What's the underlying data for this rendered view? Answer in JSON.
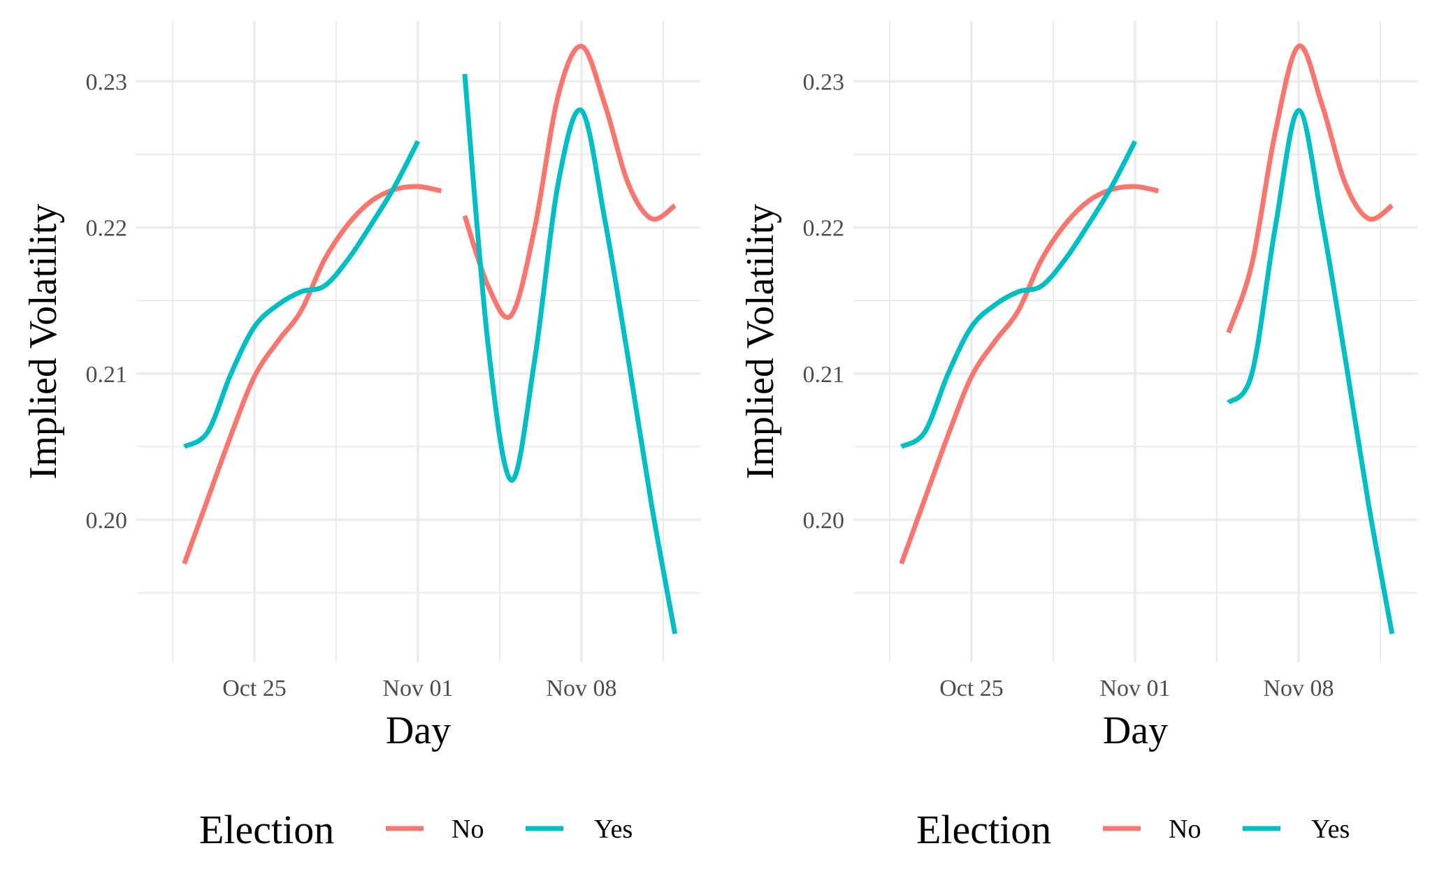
{
  "colors": {
    "No": "#F8766D",
    "Yes": "#00BFC4",
    "grid": "#EBEBEB"
  },
  "chart_data": [
    {
      "type": "line",
      "xlabel": "Day",
      "ylabel": "Implied Volatility",
      "x_ticks": [
        "Oct 25",
        "Nov 01",
        "Nov 08"
      ],
      "y_ticks": [
        "0.20",
        "0.21",
        "0.22",
        "0.23"
      ],
      "ylim": [
        0.191,
        0.235
      ],
      "xlim": [
        "2016-10-21",
        "2016-11-12"
      ],
      "legend": {
        "title": "Election",
        "position": "bottom",
        "entries": [
          "No",
          "Yes"
        ]
      },
      "grid": true,
      "series": [
        {
          "name": "No",
          "segment": 1,
          "points": [
            [
              "2016-10-22",
              0.197
            ],
            [
              "2016-10-23",
              0.2014
            ],
            [
              "2016-10-24",
              0.2058
            ],
            [
              "2016-10-25",
              0.2098
            ],
            [
              "2016-10-26",
              0.2122
            ],
            [
              "2016-10-27",
              0.2143
            ],
            [
              "2016-10-28",
              0.2178
            ],
            [
              "2016-10-29",
              0.2202
            ],
            [
              "2016-10-30",
              0.2218
            ],
            [
              "2016-10-31",
              0.2226
            ],
            [
              "2016-11-01",
              0.2228
            ],
            [
              "2016-11-02",
              0.2225
            ]
          ]
        },
        {
          "name": "Yes",
          "segment": 1,
          "points": [
            [
              "2016-10-22",
              0.205
            ],
            [
              "2016-10-23",
              0.206
            ],
            [
              "2016-10-24",
              0.21
            ],
            [
              "2016-10-25",
              0.2132
            ],
            [
              "2016-10-26",
              0.2147
            ],
            [
              "2016-10-27",
              0.2156
            ],
            [
              "2016-10-28",
              0.216
            ],
            [
              "2016-10-29",
              0.2178
            ],
            [
              "2016-10-30",
              0.2202
            ],
            [
              "2016-10-31",
              0.2228
            ],
            [
              "2016-11-01",
              0.2259
            ]
          ]
        },
        {
          "name": "No",
          "segment": 2,
          "points": [
            [
              "2016-11-03",
              0.2208
            ],
            [
              "2016-11-04",
              0.216
            ],
            [
              "2016-11-05",
              0.214
            ],
            [
              "2016-11-06",
              0.22
            ],
            [
              "2016-11-07",
              0.229
            ],
            [
              "2016-11-08",
              0.2324
            ],
            [
              "2016-11-09",
              0.2284
            ],
            [
              "2016-11-10",
              0.223
            ],
            [
              "2016-11-11",
              0.2206
            ],
            [
              "2016-11-12",
              0.2215
            ]
          ]
        },
        {
          "name": "Yes",
          "segment": 2,
          "points": [
            [
              "2016-11-03",
              0.2305
            ],
            [
              "2016-11-04",
              0.212
            ],
            [
              "2016-11-05",
              0.2027
            ],
            [
              "2016-11-06",
              0.211
            ],
            [
              "2016-11-07",
              0.223
            ],
            [
              "2016-11-08",
              0.228
            ],
            [
              "2016-11-09",
              0.2205
            ],
            [
              "2016-11-10",
              0.211
            ],
            [
              "2016-11-11",
              0.201
            ],
            [
              "2016-11-12",
              0.1922
            ]
          ]
        }
      ]
    },
    {
      "type": "line",
      "xlabel": "Day",
      "ylabel": "Implied Volatility",
      "x_ticks": [
        "Oct 25",
        "Nov 01",
        "Nov 08"
      ],
      "y_ticks": [
        "0.20",
        "0.21",
        "0.22",
        "0.23"
      ],
      "ylim": [
        0.191,
        0.235
      ],
      "xlim": [
        "2016-10-21",
        "2016-11-12"
      ],
      "legend": {
        "title": "Election",
        "position": "bottom",
        "entries": [
          "No",
          "Yes"
        ]
      },
      "grid": true,
      "series": [
        {
          "name": "No",
          "segment": 1,
          "points": [
            [
              "2016-10-22",
              0.197
            ],
            [
              "2016-10-23",
              0.2014
            ],
            [
              "2016-10-24",
              0.2058
            ],
            [
              "2016-10-25",
              0.2098
            ],
            [
              "2016-10-26",
              0.2122
            ],
            [
              "2016-10-27",
              0.2143
            ],
            [
              "2016-10-28",
              0.2178
            ],
            [
              "2016-10-29",
              0.2202
            ],
            [
              "2016-10-30",
              0.2218
            ],
            [
              "2016-10-31",
              0.2226
            ],
            [
              "2016-11-01",
              0.2228
            ],
            [
              "2016-11-02",
              0.2225
            ]
          ]
        },
        {
          "name": "Yes",
          "segment": 1,
          "points": [
            [
              "2016-10-22",
              0.205
            ],
            [
              "2016-10-23",
              0.206
            ],
            [
              "2016-10-24",
              0.21
            ],
            [
              "2016-10-25",
              0.2132
            ],
            [
              "2016-10-26",
              0.2147
            ],
            [
              "2016-10-27",
              0.2156
            ],
            [
              "2016-10-28",
              0.216
            ],
            [
              "2016-10-29",
              0.2178
            ],
            [
              "2016-10-30",
              0.2202
            ],
            [
              "2016-10-31",
              0.2228
            ],
            [
              "2016-11-01",
              0.2259
            ]
          ]
        },
        {
          "name": "No",
          "segment": 2,
          "points": [
            [
              "2016-11-05",
              0.2128
            ],
            [
              "2016-11-06",
              0.2175
            ],
            [
              "2016-11-07",
              0.2265
            ],
            [
              "2016-11-08",
              0.2324
            ],
            [
              "2016-11-09",
              0.2284
            ],
            [
              "2016-11-10",
              0.223
            ],
            [
              "2016-11-11",
              0.2206
            ],
            [
              "2016-11-12",
              0.2215
            ]
          ]
        },
        {
          "name": "Yes",
          "segment": 2,
          "points": [
            [
              "2016-11-05",
              0.208
            ],
            [
              "2016-11-06",
              0.21
            ],
            [
              "2016-11-07",
              0.22
            ],
            [
              "2016-11-08",
              0.228
            ],
            [
              "2016-11-09",
              0.2205
            ],
            [
              "2016-11-10",
              0.211
            ],
            [
              "2016-11-11",
              0.201
            ],
            [
              "2016-11-12",
              0.1922
            ]
          ]
        }
      ]
    }
  ]
}
